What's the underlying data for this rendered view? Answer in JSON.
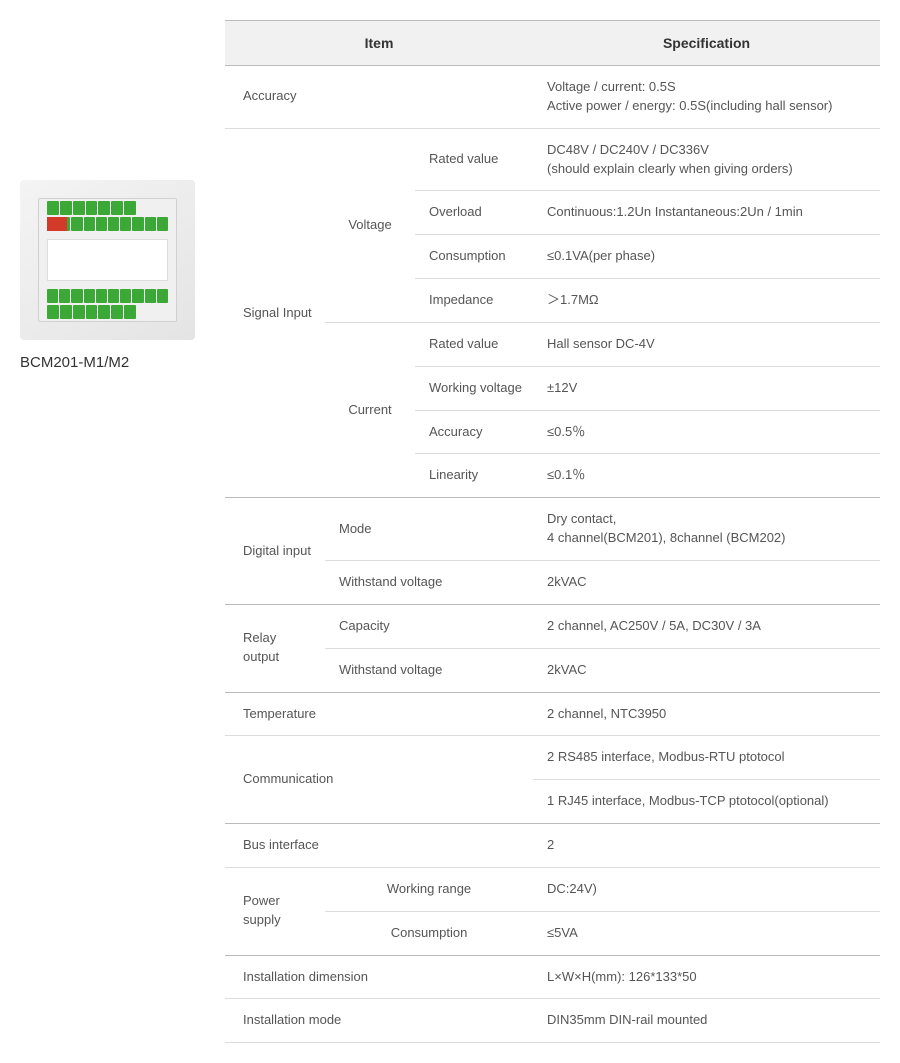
{
  "product": {
    "caption": "BCM201-M1/M2"
  },
  "table": {
    "header_item": "Item",
    "header_spec": "Specification"
  },
  "rows": {
    "accuracy": {
      "label": "Accuracy",
      "value": "Voltage / current: 0.5S\nActive power / energy: 0.5S(including hall sensor)"
    },
    "signal_input": {
      "label": "Signal Input"
    },
    "voltage": {
      "label": "Voltage",
      "rated": {
        "label": "Rated value",
        "value": "DC48V / DC240V / DC336V\n(should explain clearly when giving orders)"
      },
      "overload": {
        "label": "Overload",
        "value": "Continuous:1.2Un   Instantaneous:2Un / 1min"
      },
      "consumption": {
        "label": "Consumption",
        "value": "≤0.1VA(per phase)"
      },
      "impedance": {
        "label": "Impedance",
        "value": "＞1.7MΩ"
      }
    },
    "current": {
      "label": "Current",
      "rated": {
        "label": "Rated value",
        "value": "Hall sensor DC-4V"
      },
      "voltage": {
        "label": "Working voltage",
        "value": "±12V"
      },
      "accuracy": {
        "label": "Accuracy",
        "value": "≤0.5％"
      },
      "linearity": {
        "label": "Linearity",
        "value": "≤0.1％"
      }
    },
    "digital_input": {
      "label": "Digital input",
      "mode": {
        "label": "Mode",
        "value": "Dry contact,\n4 channel(BCM201), 8channel (BCM202)"
      },
      "withstand": {
        "label": "Withstand voltage",
        "value": "2kVAC"
      }
    },
    "relay_output": {
      "label": "Relay output",
      "capacity": {
        "label": "Capacity",
        "value": "2 channel, AC250V / 5A, DC30V / 3A"
      },
      "withstand": {
        "label": "Withstand voltage",
        "value": "2kVAC"
      }
    },
    "temperature": {
      "label": "Temperature",
      "value": "2 channel, NTC3950"
    },
    "communication": {
      "label": "Communication",
      "v1": "2 RS485 interface, Modbus-RTU ptotocol",
      "v2": "1 RJ45 interface, Modbus-TCP ptotocol(optional)"
    },
    "bus_interface": {
      "label": "Bus interface",
      "value": "2"
    },
    "power_supply": {
      "label": "Power supply",
      "range": {
        "label": "Working range",
        "value": "DC:24V)"
      },
      "consumption": {
        "label": "Consumption",
        "value": "≤5VA"
      }
    },
    "install_dim": {
      "label": "Installation dimension",
      "value": "L×W×H(mm): 126*133*50"
    },
    "install_mode": {
      "label": "Installation mode",
      "value": "DIN35mm DIN-rail mounted"
    }
  },
  "style": {
    "header_bg": "#f1f1f1",
    "border_color": "#dddddd",
    "border_strong": "#bbbbbb",
    "text_color": "#555555",
    "font_size_body": 13,
    "font_size_header": 14,
    "terminal_green": "#3ba837",
    "terminal_red": "#d43a2a"
  }
}
